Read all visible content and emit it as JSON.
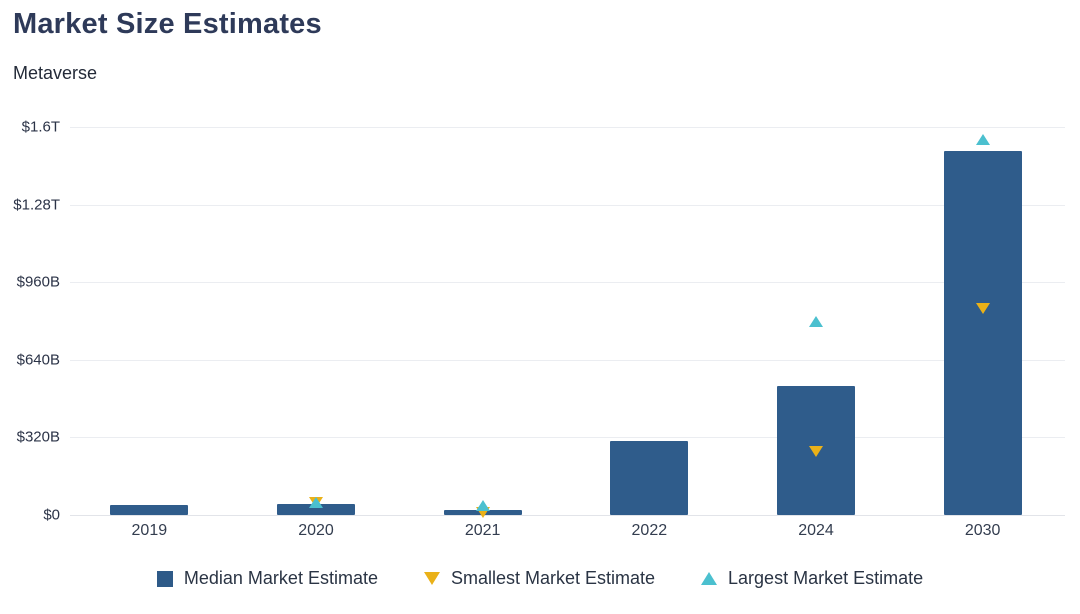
{
  "header": {
    "title": "Market Size Estimates",
    "subtitle": "Metaverse"
  },
  "colors": {
    "bar": "#2f5c8b",
    "smallest_marker": "#eab118",
    "largest_marker": "#4bc0cf",
    "title_text": "#2e3a59",
    "axis_text": "#2b3347",
    "gridline": "#ebedf1",
    "background": "#ffffff"
  },
  "chart_data": {
    "type": "bar",
    "title": "Market Size Estimates",
    "subtitle": "Metaverse",
    "unit": "USD (B = billions, T = trillions)",
    "categories": [
      "2019",
      "2020",
      "2021",
      "2022",
      "2024",
      "2030"
    ],
    "series": [
      {
        "name": "Median Market Estimate",
        "render": "bar",
        "color": "#2f5c8b",
        "values": [
          40,
          45,
          20,
          305,
          530,
          1500
        ]
      },
      {
        "name": "Smallest Market Estimate",
        "render": "triangle-down",
        "color": "#eab118",
        "values": [
          null,
          50,
          10,
          null,
          260,
          850
        ]
      },
      {
        "name": "Largest Market Estimate",
        "render": "triangle-up",
        "color": "#4bc0cf",
        "values": [
          null,
          50,
          40,
          null,
          800,
          1550
        ]
      }
    ],
    "y_axis": {
      "min": 0,
      "max": 1600,
      "ticks": [
        0,
        320,
        640,
        960,
        1280,
        1600
      ],
      "tick_labels": [
        "$0",
        "$320B",
        "$640B",
        "$960B",
        "$1.28T",
        "$1.6T"
      ]
    },
    "x_axis_label": "",
    "y_axis_label": "",
    "grid": true,
    "legend_position": "bottom"
  },
  "legend": {
    "items": [
      {
        "label": "Median Market Estimate",
        "marker": "square",
        "color": "#2e5a88"
      },
      {
        "label": "Smallest Market Estimate",
        "marker": "triangle-down",
        "color": "#eab118"
      },
      {
        "label": "Largest Market Estimate",
        "marker": "triangle-up",
        "color": "#4bc0cf"
      }
    ]
  }
}
